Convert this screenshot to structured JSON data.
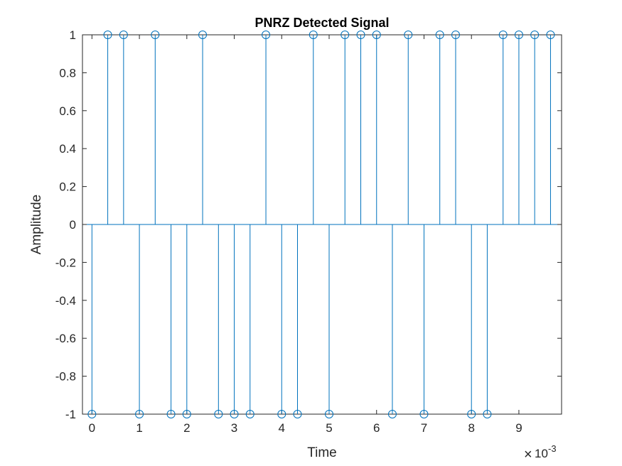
{
  "chart_data": {
    "type": "stem",
    "title": "PNRZ Detected Signal",
    "xlabel": "Time",
    "ylabel": "Amplitude",
    "x_exponent_base": "10",
    "x_exponent_power": "-3",
    "x_exponent_times": "×",
    "xlim": [
      -0.0002,
      0.0099
    ],
    "ylim": [
      -1,
      1
    ],
    "xticks": [
      0,
      0.001,
      0.002,
      0.003,
      0.004,
      0.005,
      0.006,
      0.007,
      0.008,
      0.009
    ],
    "xtick_labels": [
      "0",
      "1",
      "2",
      "3",
      "4",
      "5",
      "6",
      "7",
      "8",
      "9"
    ],
    "yticks": [
      -1,
      -0.8,
      -0.6,
      -0.4,
      -0.2,
      0,
      0.2,
      0.4,
      0.6,
      0.8,
      1
    ],
    "ytick_labels": [
      "-1",
      "-0.8",
      "-0.6",
      "-0.4",
      "-0.2",
      "0",
      "0.2",
      "0.4",
      "0.6",
      "0.8",
      "1"
    ],
    "grid": false,
    "color": "#0072BD",
    "x": [
      0,
      0.000333,
      0.000667,
      0.001,
      0.001333,
      0.001667,
      0.002,
      0.002333,
      0.002667,
      0.003,
      0.003333,
      0.003667,
      0.004,
      0.004333,
      0.004667,
      0.005,
      0.005333,
      0.005667,
      0.006,
      0.006333,
      0.006667,
      0.007,
      0.007333,
      0.007667,
      0.008,
      0.008333,
      0.008667,
      0.009,
      0.009333,
      0.009667
    ],
    "y": [
      -1,
      1,
      1,
      -1,
      1,
      -1,
      -1,
      1,
      -1,
      -1,
      -1,
      1,
      -1,
      -1,
      1,
      -1,
      1,
      1,
      1,
      -1,
      1,
      -1,
      1,
      1,
      -1,
      -1,
      1,
      1,
      1,
      1
    ]
  }
}
